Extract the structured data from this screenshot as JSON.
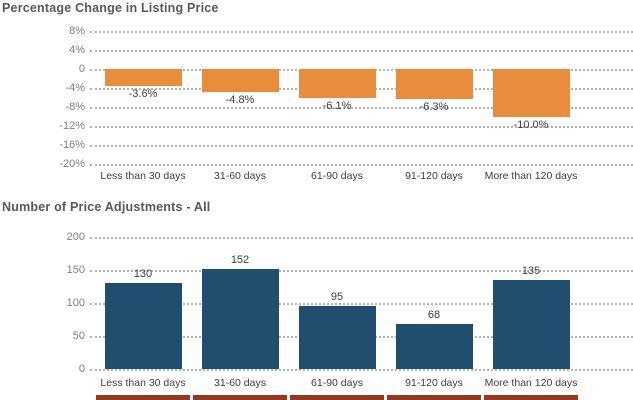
{
  "chart_data": [
    {
      "type": "bar",
      "title": "Percentage Change in Listing Price",
      "categories": [
        "Less than 30 days",
        "31-60 days",
        "61-90 days",
        "91-120 days",
        "More than 120 days"
      ],
      "values": [
        -3.6,
        -4.8,
        -6.1,
        -6.3,
        -10.0
      ],
      "value_labels": [
        "-3.6%",
        "-4.8%",
        "-6.1%",
        "-6.3%",
        "-10.0%"
      ],
      "ytick_values": [
        8,
        4,
        0,
        -4,
        -8,
        -12,
        -16,
        -20
      ],
      "ytick_labels": [
        "8%",
        "4%",
        "0",
        "-4%",
        "-8%",
        "-12%",
        "-16%",
        "-20%"
      ],
      "ylim": [
        -20,
        8
      ],
      "xlabel": "",
      "ylabel": "",
      "grid": "dotted horizontal",
      "legend_position": "none",
      "bar_color": "#E98C3C"
    },
    {
      "type": "bar",
      "title": "Number of Price Adjustments - All",
      "categories": [
        "Less than 30 days",
        "31-60 days",
        "61-90 days",
        "91-120 days",
        "More than 120 days"
      ],
      "values": [
        130,
        152,
        95,
        68,
        135
      ],
      "value_labels": [
        "130",
        "152",
        "95",
        "68",
        "135"
      ],
      "ytick_values": [
        200,
        150,
        100,
        50,
        0
      ],
      "ytick_labels": [
        "200",
        "150",
        "100",
        "50",
        "0"
      ],
      "ylim": [
        0,
        200
      ],
      "xlabel": "",
      "ylabel": "",
      "grid": "dotted horizontal",
      "legend_position": "none",
      "bar_color": "#1F4E6E"
    }
  ],
  "styles": {
    "background": "#FFFFFF",
    "grid_color": "#B3B3B3",
    "title_color": "#595959",
    "tick_label_color": "#808080",
    "category_label_color": "#404040",
    "value_label_color": "#404040",
    "orange_bar_color": "#E98C3C",
    "blue_bar_color": "#1F4E6E",
    "cutoff_strip_color": "#94381F"
  }
}
